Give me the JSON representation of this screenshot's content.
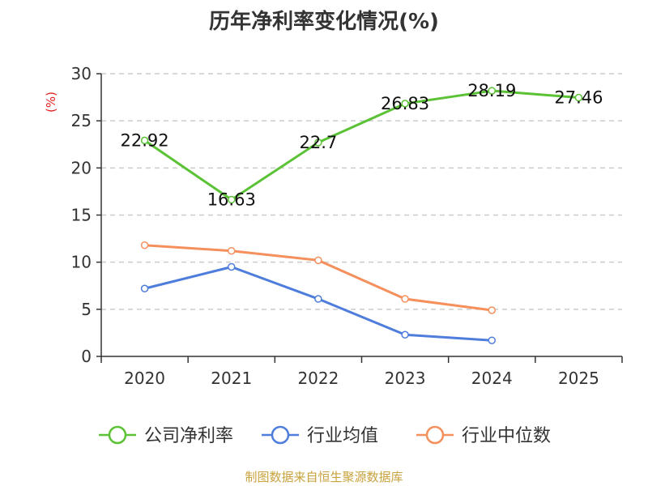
{
  "title": "历年净利率变化情况(%)",
  "footer": "制图数据来自恒生聚源数据库",
  "chart_data": {
    "type": "line",
    "title": "历年净利率变化情况(%)",
    "ylabel": "(%)",
    "xlabel": "",
    "categories": [
      "2020",
      "2021",
      "2022",
      "2023",
      "2024",
      "2025"
    ],
    "ylim": [
      0,
      30
    ],
    "yticks": [
      0,
      5,
      10,
      15,
      20,
      25,
      30
    ],
    "grid": true,
    "legend_position": "bottom",
    "series": [
      {
        "name": "公司净利率",
        "color": "#5ac234",
        "values": [
          22.92,
          16.63,
          22.7,
          26.83,
          28.19,
          27.46
        ],
        "show_labels": true
      },
      {
        "name": "行业均值",
        "color": "#4e7ddb",
        "values": [
          7.2,
          9.5,
          6.1,
          2.3,
          1.7,
          null
        ],
        "show_labels": false
      },
      {
        "name": "行业中位数",
        "color": "#f58f5c",
        "values": [
          11.8,
          11.2,
          10.2,
          6.1,
          4.9,
          null
        ],
        "show_labels": false
      }
    ],
    "unit_color": "#e02020"
  }
}
